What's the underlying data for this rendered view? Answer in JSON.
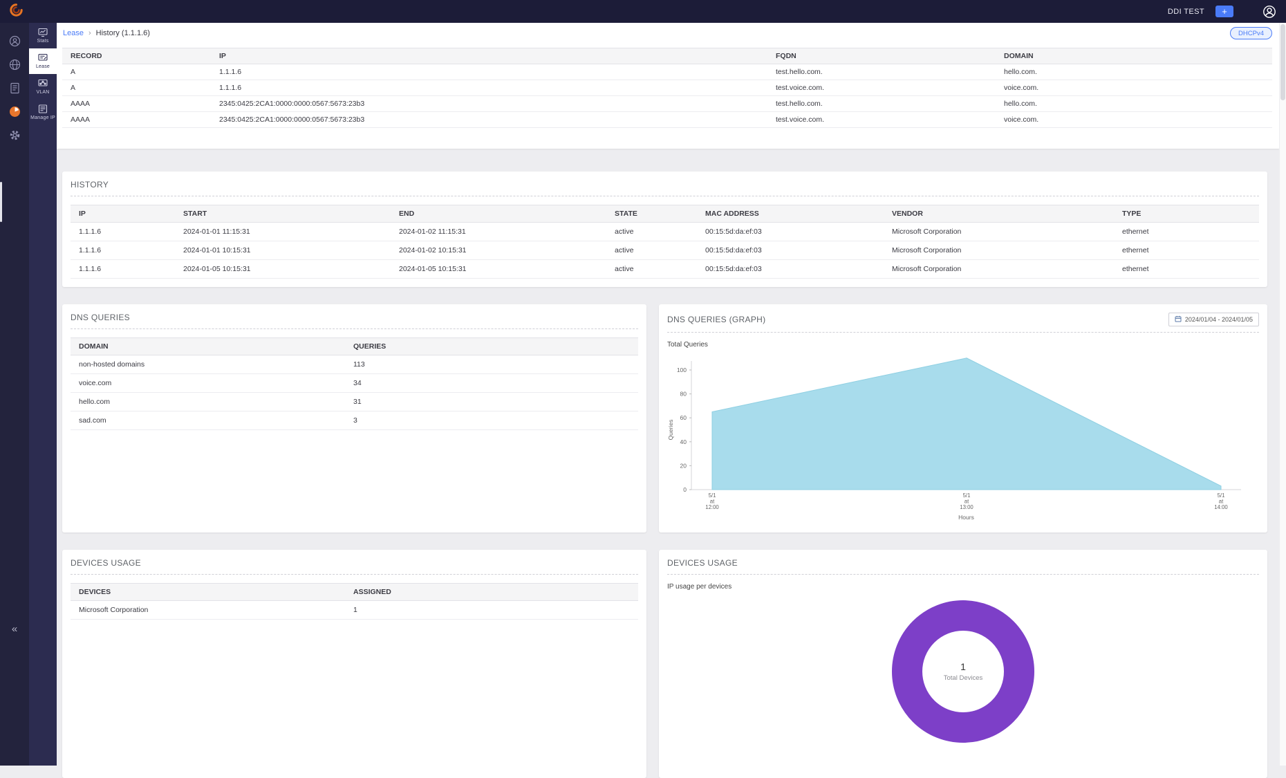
{
  "colors": {
    "accent_blue": "#4a7bf7",
    "active_orange": "#e8762c",
    "topbar_navy": "#1c1c38",
    "area_fill": "#a8dcec",
    "donut_purple": "#7d3fc8"
  },
  "topbar": {
    "brand": "DDI TEST",
    "add_label": "+"
  },
  "sidebar": {
    "collapse": "«",
    "rail_icons": [
      "support-icon",
      "globe-icon",
      "form-icon",
      "reports-icon",
      "settings-gear-icon"
    ],
    "items": [
      {
        "label": "Stats",
        "active": false
      },
      {
        "label": "Lease",
        "active": true
      },
      {
        "label": "VLAN",
        "active": false
      },
      {
        "label": "Manage IP",
        "active": false
      }
    ]
  },
  "breadcrumb": {
    "parent": "Lease",
    "sep": "›",
    "current": "History (1.1.1.6)",
    "badge": "DHCPv4"
  },
  "records": {
    "headers": [
      "RECORD",
      "IP",
      "FQDN",
      "DOMAIN"
    ],
    "rows": [
      [
        "A",
        "1.1.1.6",
        "test.hello.com.",
        "hello.com."
      ],
      [
        "A",
        "1.1.1.6",
        "test.voice.com.",
        "voice.com."
      ],
      [
        "AAAA",
        "2345:0425:2CA1:0000:0000:0567:5673:23b3",
        "test.hello.com.",
        "hello.com."
      ],
      [
        "AAAA",
        "2345:0425:2CA1:0000:0000:0567:5673:23b3",
        "test.voice.com.",
        "voice.com."
      ]
    ]
  },
  "history": {
    "title": "HISTORY",
    "headers": [
      "IP",
      "START",
      "END",
      "STATE",
      "MAC ADDRESS",
      "VENDOR",
      "TYPE"
    ],
    "rows": [
      [
        "1.1.1.6",
        "2024-01-01 11:15:31",
        "2024-01-02 11:15:31",
        "active",
        "00:15:5d:da:ef:03",
        "Microsoft Corporation",
        "ethernet"
      ],
      [
        "1.1.1.6",
        "2024-01-01 10:15:31",
        "2024-01-02 10:15:31",
        "active",
        "00:15:5d:da:ef:03",
        "Microsoft Corporation",
        "ethernet"
      ],
      [
        "1.1.1.6",
        "2024-01-05 10:15:31",
        "2024-01-05 10:15:31",
        "active",
        "00:15:5d:da:ef:03",
        "Microsoft Corporation",
        "ethernet"
      ]
    ]
  },
  "dns_queries": {
    "title": "DNS QUERIES",
    "headers": [
      "DOMAIN",
      "QUERIES"
    ],
    "rows": [
      [
        "non-hosted domains",
        "113"
      ],
      [
        "voice.com",
        "34"
      ],
      [
        "hello.com",
        "31"
      ],
      [
        "sad.com",
        "3"
      ]
    ]
  },
  "dns_graph": {
    "title": "DNS QUERIES (GRAPH)",
    "date_range": "2024/01/04 - 2024/01/05",
    "subtitle": "Total Queries"
  },
  "devices_table": {
    "title": "DEVICES USAGE",
    "headers": [
      "DEVICES",
      "ASSIGNED"
    ],
    "rows": [
      [
        "Microsoft Corporation",
        "1"
      ]
    ]
  },
  "devices_chart": {
    "title": "DEVICES USAGE",
    "subtitle": "IP usage per devices",
    "center_value": "1",
    "center_label": "Total Devices"
  },
  "chart_data": [
    {
      "type": "area",
      "title": "Total Queries",
      "categories": [
        "5/1 at 12:00",
        "5/1 at 13:00",
        "5/1 at 14:00"
      ],
      "values": [
        65,
        110,
        3
      ],
      "ylim": [
        0,
        100
      ],
      "y_ticks": [
        0,
        20,
        40,
        60,
        80,
        100
      ],
      "xlabel": "Hours",
      "ylabel": "Queries",
      "fill_color": "#a8dcec",
      "line_color": "#8ecfe2",
      "grid": false,
      "legend": false
    },
    {
      "type": "pie",
      "title": "DEVICES USAGE",
      "subtitle": "IP usage per devices",
      "labels": [
        "Microsoft Corporation"
      ],
      "values": [
        1
      ],
      "colors": [
        "#7d3fc8"
      ],
      "center_value": "1",
      "center_label": "Total Devices"
    }
  ]
}
